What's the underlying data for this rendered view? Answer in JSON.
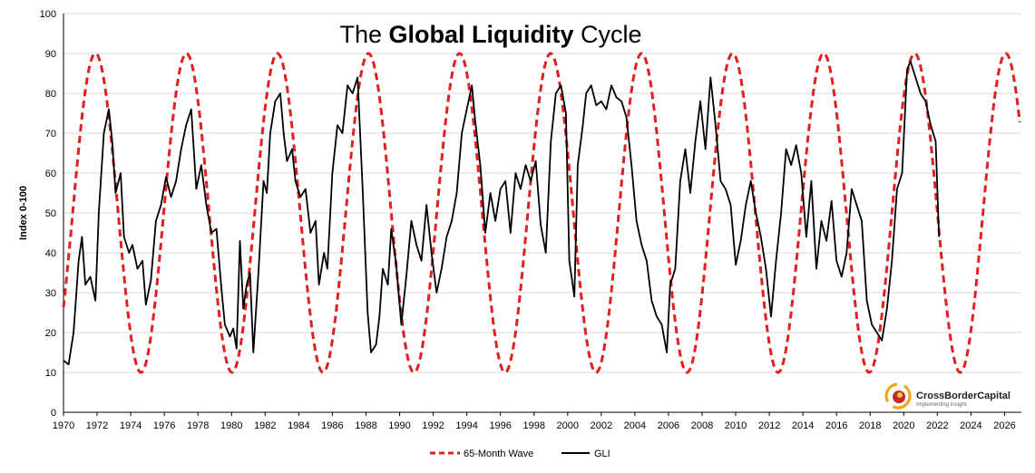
{
  "chart_data": {
    "type": "line",
    "title": "The Global Liquidity Cycle",
    "title_parts": [
      "The ",
      "Global Liquidity",
      " Cycle"
    ],
    "xlabel": "",
    "ylabel": "Index 0-100",
    "xlim": [
      1970,
      2027
    ],
    "ylim": [
      0,
      100
    ],
    "y_ticks": [
      0,
      10,
      20,
      30,
      40,
      50,
      60,
      70,
      80,
      90,
      100
    ],
    "x_ticks": [
      1970,
      1972,
      1974,
      1976,
      1978,
      1980,
      1982,
      1984,
      1986,
      1988,
      1990,
      1992,
      1994,
      1996,
      1998,
      2000,
      2002,
      2004,
      2006,
      2008,
      2010,
      2012,
      2014,
      2016,
      2018,
      2020,
      2022,
      2024,
      2026
    ],
    "grid": "horizontal",
    "legend": "bottom-center",
    "series": [
      {
        "name": "65-Month Wave",
        "style": "dashed",
        "color": "#e02020",
        "wave": {
          "period_years": 5.4167,
          "center": 50,
          "amplitude": 40,
          "first_peak": 1971.9,
          "start": 1970,
          "end": 2026.9
        }
      },
      {
        "name": "GLI",
        "style": "solid",
        "color": "#000000",
        "x": [
          1970.0,
          1970.3,
          1970.6,
          1970.9,
          1971.1,
          1971.3,
          1971.6,
          1971.9,
          1972.1,
          1972.4,
          1972.7,
          1972.9,
          1973.1,
          1973.4,
          1973.6,
          1973.9,
          1974.1,
          1974.4,
          1974.7,
          1974.9,
          1975.2,
          1975.5,
          1975.8,
          1976.1,
          1976.4,
          1976.7,
          1977.0,
          1977.3,
          1977.6,
          1977.9,
          1978.2,
          1978.5,
          1978.8,
          1979.1,
          1979.4,
          1979.6,
          1979.9,
          1980.1,
          1980.3,
          1980.5,
          1980.7,
          1980.9,
          1981.1,
          1981.3,
          1981.6,
          1981.9,
          1982.1,
          1982.3,
          1982.6,
          1982.9,
          1983.1,
          1983.3,
          1983.6,
          1983.8,
          1984.1,
          1984.4,
          1984.7,
          1985.0,
          1985.2,
          1985.5,
          1985.7,
          1986.0,
          1986.3,
          1986.6,
          1986.9,
          1987.2,
          1987.5,
          1987.8,
          1988.1,
          1988.3,
          1988.6,
          1988.8,
          1989.0,
          1989.3,
          1989.5,
          1989.8,
          1990.1,
          1990.4,
          1990.7,
          1991.0,
          1991.3,
          1991.6,
          1991.9,
          1992.2,
          1992.5,
          1992.8,
          1993.1,
          1993.4,
          1993.7,
          1994.0,
          1994.3,
          1994.5,
          1994.8,
          1995.1,
          1995.4,
          1995.7,
          1996.0,
          1996.3,
          1996.6,
          1996.9,
          1997.2,
          1997.5,
          1997.8,
          1998.1,
          1998.4,
          1998.7,
          1999.0,
          1999.3,
          1999.6,
          1999.9,
          2000.1,
          2000.4,
          2000.6,
          2000.9,
          2001.1,
          2001.4,
          2001.7,
          2002.0,
          2002.3,
          2002.6,
          2002.9,
          2003.2,
          2003.5,
          2003.8,
          2004.1,
          2004.4,
          2004.7,
          2005.0,
          2005.3,
          2005.6,
          2005.9,
          2006.1,
          2006.4,
          2006.7,
          2007.0,
          2007.3,
          2007.6,
          2007.9,
          2008.2,
          2008.5,
          2008.8,
          2009.1,
          2009.4,
          2009.7,
          2010.0,
          2010.3,
          2010.6,
          2010.9,
          2011.2,
          2011.5,
          2011.8,
          2012.1,
          2012.4,
          2012.7,
          2013.0,
          2013.3,
          2013.6,
          2013.9,
          2014.2,
          2014.5,
          2014.8,
          2015.1,
          2015.4,
          2015.7,
          2016.0,
          2016.3,
          2016.6,
          2016.9,
          2017.2,
          2017.5,
          2017.8,
          2018.1,
          2018.4,
          2018.7,
          2019.0,
          2019.3,
          2019.6,
          2019.9,
          2020.2,
          2020.4,
          2020.7,
          2021.0,
          2021.3,
          2021.6,
          2021.9,
          2022.1
        ],
        "values": [
          13,
          12,
          20,
          38,
          44,
          32,
          34,
          28,
          50,
          70,
          76,
          68,
          55,
          60,
          44,
          40,
          42,
          36,
          38,
          27,
          33,
          48,
          52,
          59,
          54,
          58,
          66,
          72,
          76,
          56,
          62,
          52,
          45,
          46,
          31,
          22,
          19,
          21,
          16,
          43,
          26,
          32,
          35,
          15,
          35,
          58,
          55,
          70,
          78,
          80,
          70,
          63,
          66,
          58,
          54,
          56,
          45,
          48,
          32,
          40,
          36,
          60,
          72,
          70,
          82,
          80,
          84,
          56,
          25,
          15,
          17,
          24,
          36,
          32,
          46,
          37,
          22,
          34,
          48,
          42,
          38,
          52,
          40,
          30,
          36,
          44,
          48,
          55,
          70,
          76,
          82,
          73,
          62,
          45,
          55,
          48,
          56,
          58,
          45,
          60,
          56,
          62,
          58,
          63,
          47,
          40,
          68,
          80,
          82,
          75,
          38,
          29,
          62,
          72,
          80,
          82,
          77,
          78,
          76,
          82,
          79,
          78,
          74,
          62,
          48,
          42,
          38,
          28,
          24,
          22,
          15,
          32,
          36,
          58,
          66,
          55,
          68,
          78,
          66,
          84,
          72,
          58,
          56,
          52,
          37,
          43,
          52,
          58,
          50,
          44,
          36,
          24,
          38,
          50,
          66,
          62,
          67,
          60,
          44,
          58,
          36,
          48,
          43,
          53,
          38,
          34,
          40,
          56,
          52,
          48,
          28,
          22,
          20,
          18,
          26,
          38,
          56,
          60,
          86,
          88,
          84,
          80,
          78,
          72,
          68,
          44
        ]
      }
    ]
  },
  "legend": {
    "wave_label": "65-Month Wave",
    "gli_label": "GLI"
  },
  "brand": {
    "name": "CrossBorderCapital",
    "tagline": "Implementing Insight"
  }
}
